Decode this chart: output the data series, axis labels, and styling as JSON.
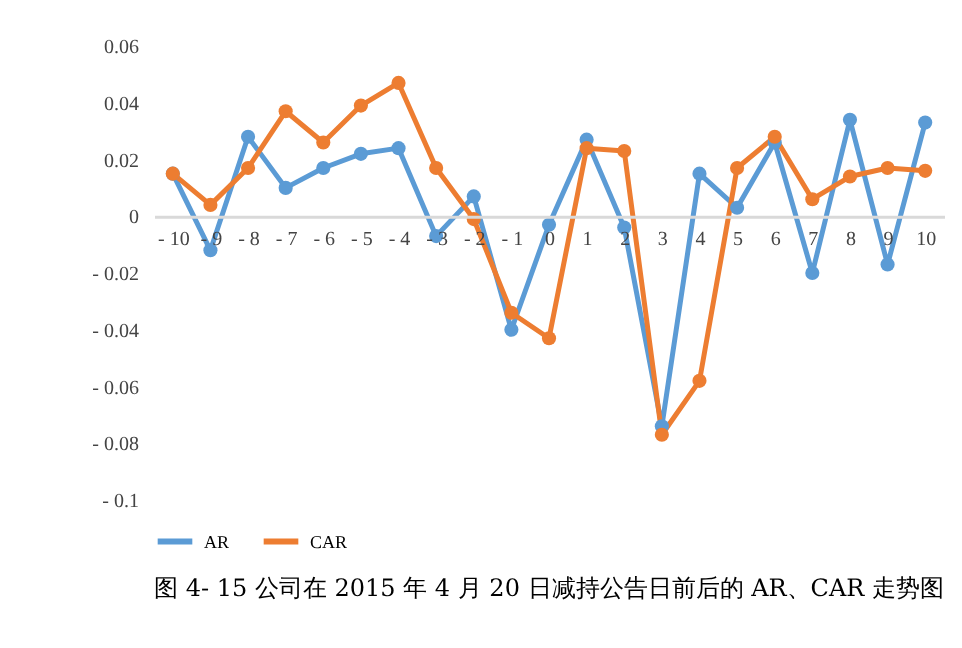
{
  "chart_data": {
    "type": "line",
    "categories": [
      "- 10",
      "- 9",
      "- 8",
      "- 7",
      "- 6",
      "- 5",
      "- 4",
      "- 3",
      "- 2",
      "- 1",
      "0",
      "1",
      "2",
      "3",
      "4",
      "5",
      "6",
      "7",
      "8",
      "9",
      "10"
    ],
    "series": [
      {
        "name": "AR",
        "color": "#5b9bd5",
        "values": [
          0.015,
          -0.012,
          0.028,
          0.01,
          0.017,
          0.022,
          0.024,
          -0.007,
          0.007,
          -0.04,
          -0.003,
          0.027,
          -0.004,
          -0.074,
          0.015,
          0.003,
          0.026,
          -0.02,
          0.034,
          -0.017,
          0.033
        ]
      },
      {
        "name": "CAR",
        "color": "#ed7d31",
        "values": [
          0.015,
          0.004,
          0.017,
          0.037,
          0.026,
          0.039,
          0.047,
          0.017,
          -0.001,
          -0.034,
          -0.043,
          0.024,
          0.023,
          -0.077,
          -0.058,
          0.017,
          0.028,
          0.006,
          0.014,
          0.017,
          0.016
        ]
      }
    ],
    "ylim": [
      -0.1,
      0.06
    ],
    "yticks": [
      0.06,
      0.04,
      0.02,
      0,
      {
        "value": -0.02,
        "label": "- 0.02"
      },
      {
        "value": -0.04,
        "label": "- 0.04"
      },
      {
        "value": -0.06,
        "label": "- 0.06"
      },
      {
        "value": -0.08,
        "label": "- 0.08"
      },
      {
        "value": -0.1,
        "label": "- 0.1"
      }
    ],
    "grid": false,
    "legend": "bottom",
    "marker": "circle",
    "line_style": "solid",
    "annotations": [
      "图 4- 15 公司在 2015 年 4 月 20 日减持公告日前后的 AR、CAR 走势图"
    ]
  }
}
